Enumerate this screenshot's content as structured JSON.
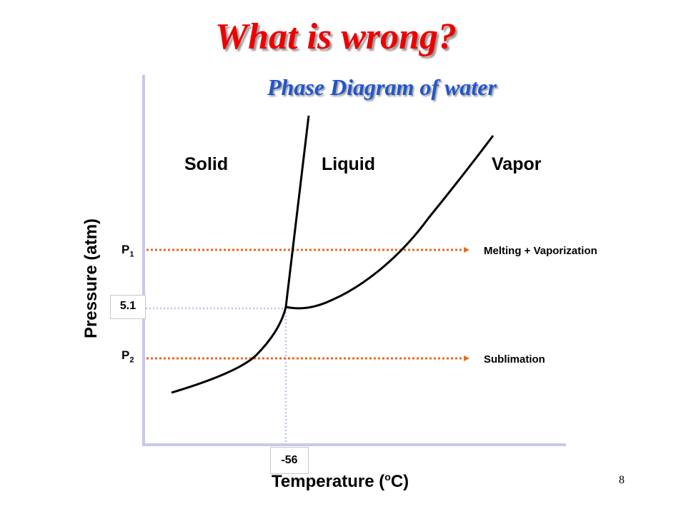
{
  "slide": {
    "title": "What is wrong?",
    "page_number": "8"
  },
  "diagram": {
    "subtitle": "Phase Diagram of water",
    "regions": {
      "solid": "Solid",
      "liquid": "Liquid",
      "vapor": "Vapor"
    },
    "axes": {
      "y_label": "Pressure (atm)",
      "x_label_prefix": "Temperature (",
      "x_label_sup": "o",
      "x_label_suffix": "C)"
    },
    "ticks": {
      "triple_pressure": "5.1",
      "triple_temperature": "-56"
    },
    "pressure_lines": {
      "p1_letter": "P",
      "p1_sub": "1",
      "p1_process": "Melting + Vaporization",
      "p2_letter": "P",
      "p2_sub": "2",
      "p2_process": "Sublimation"
    },
    "colors": {
      "axis": "#c8c8ee",
      "curve": "#000000",
      "arrow": "#e86a1a",
      "guide": "#c0c0ee",
      "title": "#ee0000",
      "subtitle": "#2255cc"
    }
  }
}
